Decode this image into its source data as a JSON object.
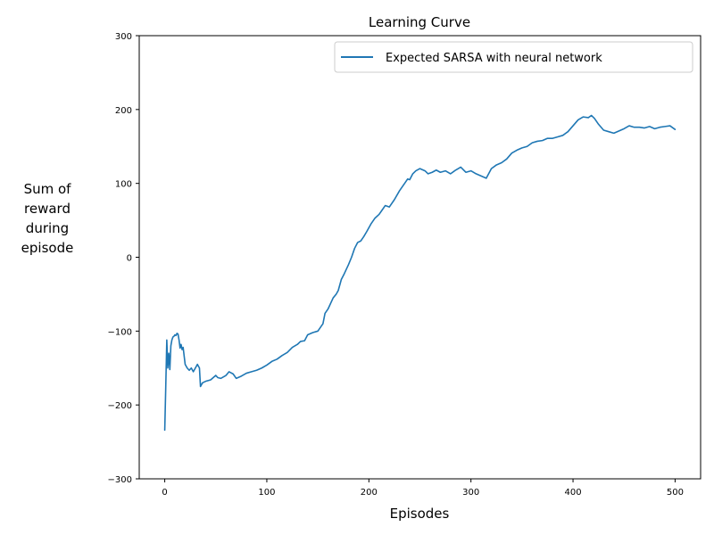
{
  "chart_data": {
    "type": "line",
    "title": "Learning Curve",
    "xlabel": "Episodes",
    "ylabel_lines": [
      "Sum of",
      "reward",
      "during",
      "episode"
    ],
    "xlim": [
      -25,
      525
    ],
    "ylim": [
      -300,
      300
    ],
    "xticks": [
      0,
      100,
      200,
      300,
      400,
      500
    ],
    "yticks": [
      -300,
      -200,
      -100,
      0,
      100,
      200,
      300
    ],
    "ytick_labels": [
      "−300",
      "−200",
      "−100",
      "0",
      "100",
      "200",
      "300"
    ],
    "legend_location": "top-right",
    "series": [
      {
        "name": "Expected SARSA with neural network",
        "color": "#1f77b4",
        "points": [
          [
            0,
            -234
          ],
          [
            1,
            -175
          ],
          [
            2,
            -112
          ],
          [
            3,
            -150
          ],
          [
            4,
            -130
          ],
          [
            5,
            -152
          ],
          [
            6,
            -120
          ],
          [
            7,
            -112
          ],
          [
            8,
            -108
          ],
          [
            9,
            -107
          ],
          [
            10,
            -105
          ],
          [
            11,
            -106
          ],
          [
            12,
            -103
          ],
          [
            13,
            -104
          ],
          [
            14,
            -112
          ],
          [
            15,
            -123
          ],
          [
            16,
            -118
          ],
          [
            17,
            -125
          ],
          [
            18,
            -122
          ],
          [
            20,
            -145
          ],
          [
            22,
            -150
          ],
          [
            24,
            -153
          ],
          [
            26,
            -150
          ],
          [
            28,
            -155
          ],
          [
            30,
            -150
          ],
          [
            32,
            -145
          ],
          [
            34,
            -150
          ],
          [
            35,
            -175
          ],
          [
            37,
            -170
          ],
          [
            40,
            -168
          ],
          [
            45,
            -166
          ],
          [
            50,
            -160
          ],
          [
            52,
            -163
          ],
          [
            55,
            -164
          ],
          [
            60,
            -160
          ],
          [
            63,
            -155
          ],
          [
            67,
            -158
          ],
          [
            70,
            -164
          ],
          [
            75,
            -161
          ],
          [
            80,
            -157
          ],
          [
            85,
            -155
          ],
          [
            90,
            -153
          ],
          [
            95,
            -150
          ],
          [
            100,
            -146
          ],
          [
            105,
            -141
          ],
          [
            110,
            -138
          ],
          [
            115,
            -133
          ],
          [
            120,
            -129
          ],
          [
            125,
            -122
          ],
          [
            130,
            -118
          ],
          [
            133,
            -114
          ],
          [
            137,
            -113
          ],
          [
            140,
            -105
          ],
          [
            145,
            -102
          ],
          [
            150,
            -100
          ],
          [
            155,
            -90
          ],
          [
            157,
            -76
          ],
          [
            160,
            -70
          ],
          [
            165,
            -55
          ],
          [
            168,
            -50
          ],
          [
            170,
            -45
          ],
          [
            173,
            -30
          ],
          [
            176,
            -22
          ],
          [
            180,
            -10
          ],
          [
            183,
            0
          ],
          [
            186,
            12
          ],
          [
            189,
            20
          ],
          [
            192,
            22
          ],
          [
            195,
            28
          ],
          [
            198,
            35
          ],
          [
            202,
            45
          ],
          [
            206,
            53
          ],
          [
            210,
            58
          ],
          [
            213,
            64
          ],
          [
            216,
            70
          ],
          [
            220,
            68
          ],
          [
            225,
            78
          ],
          [
            230,
            90
          ],
          [
            235,
            100
          ],
          [
            238,
            106
          ],
          [
            240,
            105
          ],
          [
            243,
            113
          ],
          [
            246,
            117
          ],
          [
            250,
            120
          ],
          [
            255,
            117
          ],
          [
            258,
            113
          ],
          [
            262,
            115
          ],
          [
            266,
            118
          ],
          [
            270,
            115
          ],
          [
            275,
            117
          ],
          [
            280,
            113
          ],
          [
            285,
            118
          ],
          [
            290,
            122
          ],
          [
            295,
            115
          ],
          [
            300,
            117
          ],
          [
            305,
            113
          ],
          [
            310,
            110
          ],
          [
            315,
            107
          ],
          [
            320,
            120
          ],
          [
            325,
            125
          ],
          [
            330,
            128
          ],
          [
            335,
            133
          ],
          [
            340,
            141
          ],
          [
            345,
            145
          ],
          [
            350,
            148
          ],
          [
            355,
            150
          ],
          [
            360,
            155
          ],
          [
            365,
            157
          ],
          [
            370,
            158
          ],
          [
            375,
            161
          ],
          [
            380,
            161
          ],
          [
            385,
            163
          ],
          [
            390,
            165
          ],
          [
            395,
            170
          ],
          [
            400,
            178
          ],
          [
            405,
            186
          ],
          [
            410,
            190
          ],
          [
            415,
            189
          ],
          [
            418,
            192
          ],
          [
            421,
            188
          ],
          [
            425,
            180
          ],
          [
            430,
            172
          ],
          [
            435,
            170
          ],
          [
            440,
            168
          ],
          [
            445,
            171
          ],
          [
            450,
            174
          ],
          [
            455,
            178
          ],
          [
            460,
            176
          ],
          [
            465,
            176
          ],
          [
            470,
            175
          ],
          [
            475,
            177
          ],
          [
            480,
            174
          ],
          [
            485,
            176
          ],
          [
            490,
            177
          ],
          [
            495,
            178
          ],
          [
            498,
            175
          ],
          [
            500,
            173
          ]
        ]
      }
    ]
  }
}
